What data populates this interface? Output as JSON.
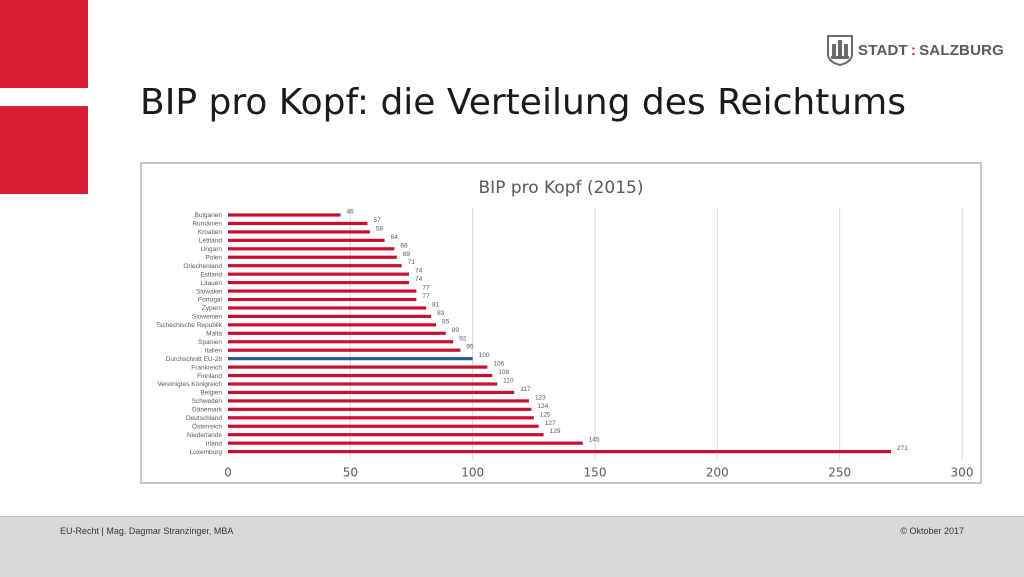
{
  "page": {
    "title": "BIP pro Kopf: die Verteilung des Reichtums"
  },
  "logo": {
    "left": "STADT",
    "sep": ":",
    "right": "SALZBURG"
  },
  "footer": {
    "left": "EU-Recht | Mag. Dagmar Stranzinger, MBA",
    "right": "© Oktober 2017"
  },
  "colors": {
    "accent_red": "#d81e34",
    "bar_red": "#c8102e",
    "bar_blue": "#2e5597"
  },
  "chart_data": {
    "type": "bar",
    "orientation": "horizontal",
    "title": "BIP pro Kopf (2015)",
    "xlim": [
      0,
      300
    ],
    "xticks": [
      0,
      50,
      100,
      150,
      200,
      250,
      300
    ],
    "grid": true,
    "categories": [
      "Bulgarien",
      "Rumänien",
      "Kroatien",
      "Lettland",
      "Ungarn",
      "Polen",
      "Griechenland",
      "Estland",
      "Litauen",
      "Slowakei",
      "Portugal",
      "Zypern",
      "Slowenien",
      "Tschechische Republik",
      "Malta",
      "Spanien",
      "Italien",
      "Durchschnitt EU-28",
      "Frankreich",
      "Finnland",
      "Vereinigtes Königreich",
      "Belgien",
      "Schweden",
      "Dänemark",
      "Deutschland",
      "Österreich",
      "Niederlande",
      "Irland",
      "Luxemburg"
    ],
    "values": [
      46,
      57,
      58,
      64,
      68,
      69,
      71,
      74,
      74,
      77,
      77,
      81,
      83,
      85,
      89,
      92,
      95,
      100,
      106,
      108,
      110,
      117,
      123,
      124,
      125,
      127,
      129,
      145,
      271
    ],
    "highlight": "Durchschnitt EU-28"
  }
}
